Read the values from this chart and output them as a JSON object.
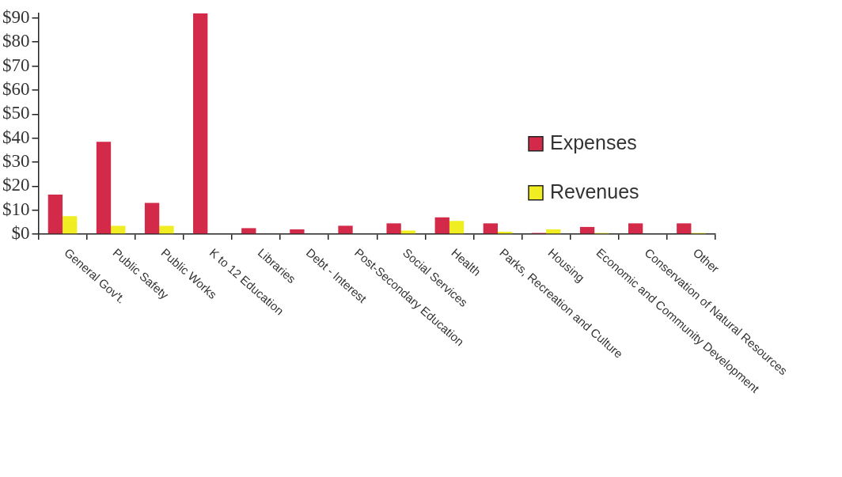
{
  "chart_data": {
    "type": "bar",
    "categories": [
      "General Gov't.",
      "Public Safety",
      "Public Works",
      "K to 12 Education",
      "Libraries",
      "Debt - Interest",
      "Post-Secondary Education",
      "Social Services",
      "Health",
      "Parks, Recreation and Culture",
      "Housing",
      "Economic and Community Development",
      "Conservation of Natural Resources",
      "Other"
    ],
    "series": [
      {
        "name": "Expenses",
        "color": "#d42a4a",
        "values": [
          16.5,
          38.5,
          13,
          92,
          2.5,
          2,
          3.5,
          4.5,
          7,
          4.5,
          0.5,
          3,
          4.5,
          4.5
        ]
      },
      {
        "name": "Revenues",
        "color": "#f0ee22",
        "values": [
          7.5,
          3.5,
          3.5,
          0,
          null,
          null,
          null,
          1.5,
          5.5,
          1,
          2,
          0.5,
          0,
          0.5
        ]
      }
    ],
    "ylim": [
      0,
      92
    ],
    "yticks": [
      {
        "value": 0,
        "label": "$0"
      },
      {
        "value": 10,
        "label": "$10"
      },
      {
        "value": 20,
        "label": "$20"
      },
      {
        "value": 30,
        "label": "$30"
      },
      {
        "value": 40,
        "label": "$40"
      },
      {
        "value": 50,
        "label": "$50"
      },
      {
        "value": 60,
        "label": "$60"
      },
      {
        "value": 70,
        "label": "$70"
      },
      {
        "value": 80,
        "label": "$80"
      },
      {
        "value": 90,
        "label": "$90"
      }
    ],
    "grid": false,
    "legend": "right"
  }
}
